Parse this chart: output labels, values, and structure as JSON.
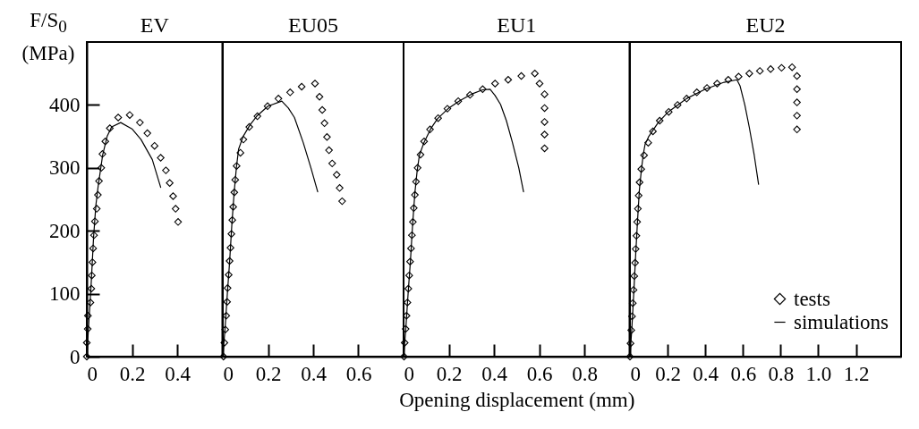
{
  "chart_data": [
    {
      "type": "scatter",
      "title": "EV",
      "ylabel": "F/S$_{0}$ (MPa)",
      "xlim": [
        0,
        0.6
      ],
      "xticks": [
        0,
        0.2,
        0.4
      ],
      "ylim": [
        0,
        500
      ],
      "yticks": [
        0,
        100,
        200,
        300,
        400
      ],
      "series": [
        {
          "type": "scatter",
          "color": "#000000",
          "marker": "diamond",
          "x": [
            0,
            0,
            0.004,
            0.005,
            0.016,
            0.02,
            0.022,
            0.025,
            0.028,
            0.032,
            0.036,
            0.044,
            0.049,
            0.054,
            0.064,
            0.069,
            0.082,
            0.102,
            0.139,
            0.19,
            0.235,
            0.268,
            0.3,
            0.327,
            0.35,
            0.367,
            0.382,
            0.393,
            0.404
          ],
          "values": [
            0,
            22,
            44,
            65,
            86,
            108,
            129,
            150,
            172,
            193,
            215,
            235,
            257,
            279,
            300,
            322,
            342,
            363,
            380,
            384,
            372,
            355,
            335,
            316,
            296,
            276,
            255,
            235,
            214
          ]
        },
        {
          "type": "line",
          "color": "#000000",
          "x": [
            0,
            0.01,
            0.02,
            0.03,
            0.04,
            0.05,
            0.06,
            0.07,
            0.09,
            0.11,
            0.15,
            0.2,
            0.24,
            0.29,
            0.327
          ],
          "values": [
            0,
            60,
            120,
            190,
            240,
            270,
            295,
            320,
            350,
            365,
            372,
            362,
            345,
            313,
            269
          ]
        }
      ]
    },
    {
      "type": "scatter",
      "title": "EU05",
      "xlim": [
        0,
        0.8
      ],
      "xticks": [
        0,
        0.2,
        0.4,
        0.6
      ],
      "ylim": [
        0,
        500
      ],
      "yticks": [
        0,
        100,
        200,
        300,
        400
      ],
      "tick_labels": "x",
      "series": [
        {
          "type": "scatter",
          "color": "#000000",
          "marker": "diamond",
          "x": [
            0.003,
            0.007,
            0.011,
            0.015,
            0.019,
            0.021,
            0.026,
            0.03,
            0.034,
            0.038,
            0.042,
            0.046,
            0.051,
            0.055,
            0.061,
            0.078,
            0.091,
            0.117,
            0.153,
            0.198,
            0.246,
            0.298,
            0.349,
            0.408,
            0.428,
            0.44,
            0.45,
            0.461,
            0.47,
            0.484,
            0.504,
            0.517,
            0.528
          ],
          "values": [
            0,
            22,
            43,
            65,
            87,
            109,
            130,
            152,
            173,
            195,
            217,
            238,
            261,
            281,
            303,
            324,
            345,
            365,
            382,
            398,
            410,
            420,
            429,
            434,
            413,
            392,
            371,
            349,
            328,
            307,
            289,
            268,
            247
          ]
        },
        {
          "type": "line",
          "color": "#000000",
          "x": [
            0,
            0.01,
            0.02,
            0.03,
            0.04,
            0.05,
            0.06,
            0.07,
            0.09,
            0.12,
            0.15,
            0.2,
            0.261,
            0.29,
            0.317,
            0.356,
            0.39,
            0.42
          ],
          "values": [
            0,
            45,
            100,
            150,
            210,
            260,
            300,
            330,
            350,
            368,
            382,
            398,
            406,
            395,
            380,
            340,
            300,
            262
          ]
        }
      ]
    },
    {
      "type": "scatter",
      "title": "EU1",
      "xlabel": "Opening displacement (mm)",
      "xlim": [
        0,
        1
      ],
      "xticks": [
        0,
        0.2,
        0.4,
        0.6,
        0.8
      ],
      "ylim": [
        0,
        500
      ],
      "yticks": [
        0,
        100,
        200,
        300,
        400
      ],
      "tick_labels": "x",
      "series": [
        {
          "type": "scatter",
          "color": "#000000",
          "marker": "diamond",
          "x": [
            0.002,
            0.005,
            0.009,
            0.013,
            0.017,
            0.021,
            0.025,
            0.029,
            0.033,
            0.037,
            0.041,
            0.045,
            0.05,
            0.055,
            0.062,
            0.075,
            0.091,
            0.117,
            0.153,
            0.194,
            0.242,
            0.294,
            0.35,
            0.405,
            0.463,
            0.521,
            0.581,
            0.602,
            0.624,
            0.624,
            0.624,
            0.624,
            0.624
          ],
          "values": [
            0,
            22,
            44,
            65,
            86,
            108,
            129,
            151,
            172,
            193,
            214,
            236,
            257,
            278,
            300,
            321,
            342,
            361,
            379,
            394,
            406,
            416,
            425,
            434,
            440,
            446,
            450,
            434,
            417,
            395,
            373,
            353,
            331
          ]
        },
        {
          "type": "line",
          "color": "#000000",
          "x": [
            0,
            0.01,
            0.02,
            0.03,
            0.04,
            0.05,
            0.06,
            0.07,
            0.09,
            0.12,
            0.15,
            0.2,
            0.25,
            0.3,
            0.35,
            0.383,
            0.405,
            0.429,
            0.455,
            0.482,
            0.51,
            0.531
          ],
          "values": [
            0,
            45,
            100,
            150,
            210,
            260,
            295,
            320,
            340,
            362,
            378,
            395,
            407,
            417,
            424,
            425,
            415,
            401,
            375,
            340,
            300,
            262
          ]
        }
      ]
    },
    {
      "type": "scatter",
      "title": "EU2",
      "xlim": [
        0,
        1.44
      ],
      "xticks": [
        0,
        0.2,
        0.4,
        0.6,
        0.8,
        {
          "value": 1,
          "label": "1.0"
        },
        1.2
      ],
      "ylim": [
        0,
        500
      ],
      "yticks": [
        0,
        100,
        200,
        300,
        400
      ],
      "tick_labels": "x",
      "legend": "bottom right",
      "series": [
        {
          "type": "scatter",
          "name": "tests",
          "color": "#000000",
          "marker": "diamond",
          "x": [
            0,
            0.003,
            0.007,
            0.011,
            0.015,
            0.019,
            0.023,
            0.027,
            0.03,
            0.034,
            0.038,
            0.042,
            0.046,
            0.051,
            0.06,
            0.075,
            0.097,
            0.122,
            0.158,
            0.206,
            0.253,
            0.301,
            0.355,
            0.409,
            0.463,
            0.522,
            0.577,
            0.634,
            0.69,
            0.747,
            0.805,
            0.861,
            0.887,
            0.887,
            0.887,
            0.887,
            0.887
          ],
          "values": [
            0,
            21,
            42,
            64,
            85,
            106,
            128,
            149,
            171,
            192,
            214,
            235,
            256,
            277,
            298,
            320,
            340,
            358,
            375,
            389,
            400,
            410,
            420,
            427,
            434,
            440,
            445,
            450,
            454,
            457,
            459,
            460,
            446,
            425,
            404,
            383,
            361
          ]
        },
        {
          "type": "line",
          "name": "simulations",
          "color": "#000000",
          "x": [
            0,
            0.01,
            0.02,
            0.03,
            0.04,
            0.05,
            0.06,
            0.07,
            0.08,
            0.1,
            0.15,
            0.2,
            0.3,
            0.4,
            0.5,
            0.568,
            0.585,
            0.61,
            0.634,
            0.66,
            0.683
          ],
          "values": [
            0,
            45,
            100,
            160,
            215,
            265,
            295,
            320,
            337,
            350,
            372,
            388,
            410,
            425,
            436,
            440,
            430,
            400,
            364,
            320,
            274
          ]
        }
      ]
    }
  ]
}
